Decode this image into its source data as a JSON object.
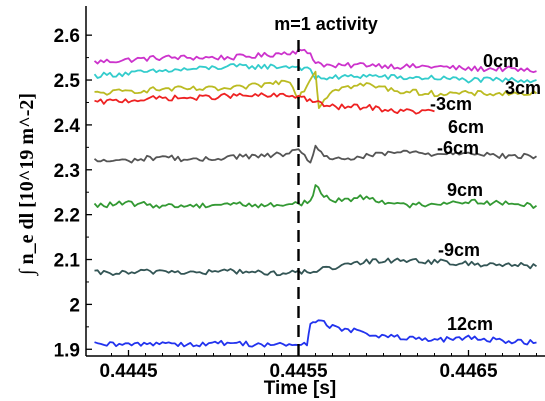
{
  "chart_data": {
    "type": "line",
    "xlabel": "Time [s]",
    "ylabel": "∫ n_e dl  [10^19 m^-2]",
    "xlim": [
      0.44425,
      0.44695
    ],
    "ylim": [
      1.885,
      2.665
    ],
    "x_ticks": [
      "0.4445",
      "0.4455",
      "0.4465"
    ],
    "x_tick_values": [
      0.4445,
      0.4455,
      0.4465
    ],
    "y_ticks": [
      "1.9",
      "2",
      "2.1",
      "2.2",
      "2.3",
      "2.4",
      "2.5",
      "2.6"
    ],
    "y_tick_values": [
      1.9,
      2.0,
      2.1,
      2.2,
      2.3,
      2.4,
      2.5,
      2.6
    ],
    "annotation": {
      "text": "m=1 activity",
      "x": 0.4455
    },
    "grid": false,
    "series": [
      {
        "name": "0cm",
        "color": "#cc33cc",
        "x": [
          0.4443,
          0.4445,
          0.4447,
          0.4449,
          0.4451,
          0.4453,
          0.4454,
          0.4455,
          0.44557,
          0.4456,
          0.4457,
          0.4459,
          0.4461,
          0.4463,
          0.4465,
          0.4467,
          0.4469
        ],
        "y": [
          2.54,
          2.545,
          2.55,
          2.55,
          2.55,
          2.555,
          2.56,
          2.565,
          2.56,
          2.54,
          2.53,
          2.535,
          2.53,
          2.53,
          2.525,
          2.525,
          2.52
        ]
      },
      {
        "name": "3cm",
        "color": "#33cccc",
        "x": [
          0.4443,
          0.4445,
          0.4447,
          0.4449,
          0.4451,
          0.4453,
          0.4455,
          0.44557,
          0.4456,
          0.4457,
          0.4459,
          0.4461,
          0.4463,
          0.4465,
          0.4467,
          0.4469
        ],
        "y": [
          2.51,
          2.515,
          2.52,
          2.525,
          2.53,
          2.53,
          2.53,
          2.52,
          2.505,
          2.505,
          2.51,
          2.505,
          2.505,
          2.5,
          2.5,
          2.5
        ]
      },
      {
        "name": "-3cm",
        "color": "#bbbb22",
        "x": [
          0.4443,
          0.4445,
          0.4447,
          0.4449,
          0.4451,
          0.4453,
          0.44545,
          0.4455,
          0.4456,
          0.44562,
          0.4457,
          0.4459,
          0.4461,
          0.4463,
          0.4465,
          0.4467,
          0.4469
        ],
        "y": [
          2.47,
          2.475,
          2.48,
          2.48,
          2.48,
          2.49,
          2.5,
          2.46,
          2.52,
          2.44,
          2.48,
          2.49,
          2.475,
          2.47,
          2.47,
          2.47,
          2.47
        ]
      },
      {
        "name": "6cm",
        "color": "#ee2222",
        "x": [
          0.4443,
          0.4445,
          0.4447,
          0.4449,
          0.4451,
          0.4453,
          0.4455,
          0.4456,
          0.4457,
          0.4459,
          0.4461,
          0.4463
        ],
        "y": [
          2.45,
          2.455,
          2.46,
          2.46,
          2.465,
          2.465,
          2.465,
          2.45,
          2.44,
          2.44,
          2.43,
          2.43
        ]
      },
      {
        "name": "-6cm",
        "color": "#555555",
        "x": [
          0.4443,
          0.4445,
          0.4447,
          0.4449,
          0.4451,
          0.4453,
          0.4455,
          0.44557,
          0.4456,
          0.4457,
          0.4459,
          0.4461,
          0.4463,
          0.4465,
          0.4467,
          0.4469
        ],
        "y": [
          2.32,
          2.32,
          2.33,
          2.32,
          2.33,
          2.33,
          2.34,
          2.32,
          2.35,
          2.32,
          2.33,
          2.34,
          2.335,
          2.34,
          2.33,
          2.33
        ]
      },
      {
        "name": "9cm",
        "color": "#339933",
        "x": [
          0.4443,
          0.4445,
          0.4447,
          0.4449,
          0.4451,
          0.4453,
          0.4455,
          0.44557,
          0.4456,
          0.4457,
          0.4459,
          0.4461,
          0.4463,
          0.4465,
          0.4467,
          0.4469
        ],
        "y": [
          2.22,
          2.225,
          2.22,
          2.22,
          2.225,
          2.22,
          2.225,
          2.23,
          2.26,
          2.23,
          2.24,
          2.22,
          2.225,
          2.23,
          2.225,
          2.22
        ]
      },
      {
        "name": "-9cm",
        "color": "#335555",
        "x": [
          0.4443,
          0.4445,
          0.4447,
          0.4449,
          0.4451,
          0.4453,
          0.4455,
          0.44557,
          0.4457,
          0.4459,
          0.4461,
          0.4463,
          0.4465,
          0.4467,
          0.4469
        ],
        "y": [
          2.07,
          2.07,
          2.075,
          2.07,
          2.075,
          2.07,
          2.07,
          2.075,
          2.08,
          2.095,
          2.1,
          2.095,
          2.09,
          2.09,
          2.085
        ]
      },
      {
        "name": "12cm",
        "color": "#2233ee",
        "x": [
          0.4443,
          0.4445,
          0.4447,
          0.4449,
          0.4451,
          0.4453,
          0.4455,
          0.44555,
          0.44557,
          0.4456,
          0.4457,
          0.4459,
          0.4461,
          0.4463,
          0.4465,
          0.4467,
          0.4469
        ],
        "y": [
          1.91,
          1.91,
          1.915,
          1.91,
          1.915,
          1.91,
          1.91,
          1.91,
          1.96,
          1.965,
          1.95,
          1.935,
          1.925,
          1.92,
          1.925,
          1.92,
          1.915
        ]
      }
    ]
  }
}
